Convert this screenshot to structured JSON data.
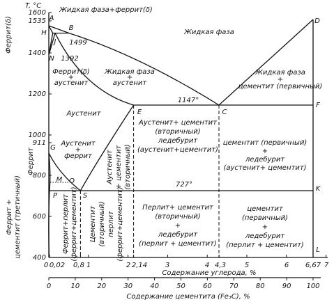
{
  "axis_y": {
    "label": "T, °C",
    "ticks": [
      "1600",
      "1535",
      "1400",
      "1200",
      "1000",
      "911",
      "800",
      "600",
      "400"
    ]
  },
  "axis_x": {
    "label": "Содержание углерода, %",
    "ticks": [
      "0",
      "0,02",
      "0,8",
      "1",
      "2",
      "2,14",
      "3",
      "4",
      "4,3",
      "5",
      "6",
      "6,67",
      "7"
    ]
  },
  "axis_x2": {
    "label": "Содержание цементита (Fe₃C), %",
    "ticks": [
      "0",
      "10",
      "20",
      "30",
      "40",
      "50",
      "60",
      "70",
      "80",
      "90",
      "100"
    ]
  },
  "points": [
    "A",
    "B",
    "H",
    "J",
    "N",
    "E",
    "C",
    "D",
    "F",
    "G",
    "M",
    "O",
    "P",
    "S",
    "K",
    "L"
  ],
  "temperatures": [
    "1499",
    "1392",
    "1147°",
    "727°"
  ],
  "regions": [
    {
      "lines": [
        "Жидкая фаза+феррит(δ)"
      ]
    },
    {
      "lines": [
        "Жидкая фаза"
      ]
    },
    {
      "lines": [
        "Феррит(δ)",
        "+",
        "аустенит"
      ]
    },
    {
      "lines": [
        "Жидкая фаза",
        "+",
        "аустенит"
      ]
    },
    {
      "lines": [
        "Жидкая фаза",
        "+",
        "цементит (первичный)"
      ]
    },
    {
      "lines": [
        "Аустенит"
      ]
    },
    {
      "lines": [
        "Аустенит+ цементит",
        "(вторичный)",
        "ледебурит",
        "(аустенит+цементит)"
      ]
    },
    {
      "lines": [
        "цементит (первичный)",
        "+",
        "ледебурит",
        "(аустенит+ цементит)"
      ]
    },
    {
      "lines": [
        "Аустенит",
        "+",
        "феррит"
      ]
    },
    {
      "lines": [
        "Аустенит",
        "+ цементит",
        "(вторичный)"
      ]
    },
    {
      "lines": [
        "Феррит+перлит",
        "(феррит+цементит)"
      ]
    },
    {
      "lines": [
        "Цементит",
        "(вторичный)",
        "перлит",
        "(феррит+цементит)"
      ]
    },
    {
      "lines": [
        "Перлит+ цементит",
        "(вторичный)",
        "+",
        "ледебурит",
        "(перлит + цементит)"
      ]
    },
    {
      "lines": [
        "цементит",
        "(первичный)",
        "+",
        "ледебурит",
        "(перлит + цементит)"
      ]
    },
    {
      "lines": [
        "Феррит(δ)"
      ]
    },
    {
      "lines": [
        "Феррит"
      ]
    },
    {
      "lines": [
        "Феррит +",
        "цементит (третичный)"
      ]
    }
  ]
}
